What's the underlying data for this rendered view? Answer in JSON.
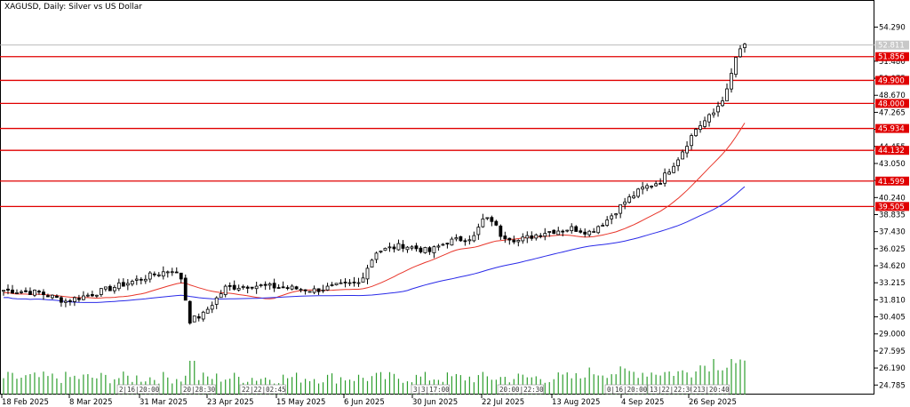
{
  "chart_data": {
    "type": "candlestick",
    "title": "XAGUSD, Daily:  Silver vs US Dollar",
    "y_axis_ticks": [
      "54.290",
      "51.480",
      "50.075",
      "48.670",
      "47.265",
      "45.860",
      "44.455",
      "43.050",
      "41.645",
      "40.240",
      "38.835",
      "37.430",
      "36.025",
      "34.620",
      "33.215",
      "31.810",
      "30.405",
      "29.000",
      "27.595",
      "26.190",
      "24.785"
    ],
    "x_axis_labels": [
      "18 Feb 2025",
      "8 Mar 2025",
      "31 Mar 2025",
      "23 Apr 2025",
      "15 May 2025",
      "6 Jun 2025",
      "30 Jun 2025",
      "22 Jul 2025",
      "13 Aug 2025",
      "4 Sep 2025",
      "26 Sep 2025"
    ],
    "ylim": [
      24.0,
      55.5
    ],
    "current_price": "52.811",
    "horizontal_levels": [
      {
        "value": 51.856,
        "label": "51.856"
      },
      {
        "value": 49.9,
        "label": "49.900"
      },
      {
        "value": 48.0,
        "label": "48.000"
      },
      {
        "value": 45.934,
        "label": "45.934"
      },
      {
        "value": 44.132,
        "label": "44.132"
      },
      {
        "value": 41.599,
        "label": "41.599"
      },
      {
        "value": 39.505,
        "label": "39.505"
      }
    ],
    "moving_averages": [
      {
        "color": "#e8352a",
        "period_hint": "fast"
      },
      {
        "color": "#2a2ae8",
        "period_hint": "slow"
      }
    ],
    "colors": {
      "grid": "#c8c8c8",
      "level": "#e00000",
      "volume": "#2e9e2e",
      "candle": "#000000",
      "current": "#b0b0b0"
    },
    "bottom_labels": [
      "2|16|20:00",
      "20|28:30",
      "22|22|02:45",
      "3|3|17:00",
      "20:00|22:30",
      "0|16|20:00",
      "13|22|22:30",
      "213|20:40"
    ]
  }
}
